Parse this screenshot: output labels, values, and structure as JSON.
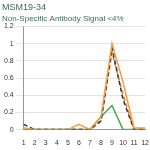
{
  "chart_data": {
    "type": "line",
    "title": "MSM19-34",
    "subtitle": "Non-Specific Antibody Signal <4%",
    "categories": [
      1,
      2,
      3,
      4,
      5,
      6,
      7,
      8,
      9,
      10,
      11,
      12
    ],
    "series": [
      {
        "color": "#f0a040",
        "line_style": "solid",
        "values": [
          0.02,
          0,
          0,
          0,
          0,
          0.06,
          0,
          0.15,
          1.0,
          0.55,
          0.02,
          0.02
        ]
      },
      {
        "color": "#1f2d5c",
        "line_style": "dashed",
        "values": [
          0.06,
          0,
          0,
          0,
          0,
          0,
          0,
          0.1,
          0.95,
          0.35,
          0,
          0
        ]
      },
      {
        "color": "#e07020",
        "line_style": "dashed",
        "values": [
          0,
          0,
          0,
          0,
          0,
          0,
          0,
          0.1,
          0.9,
          0.4,
          0,
          0
        ]
      },
      {
        "color": "#3cb040",
        "line_style": "solid",
        "values": [
          0,
          0,
          0,
          0,
          0,
          0,
          0,
          0.15,
          0.28,
          0,
          0,
          0
        ]
      }
    ],
    "ylim": [
      0,
      1.2
    ],
    "yticks": [
      0,
      0.2,
      0.4,
      0.6,
      0.8,
      1,
      1.2
    ],
    "grid": true
  }
}
